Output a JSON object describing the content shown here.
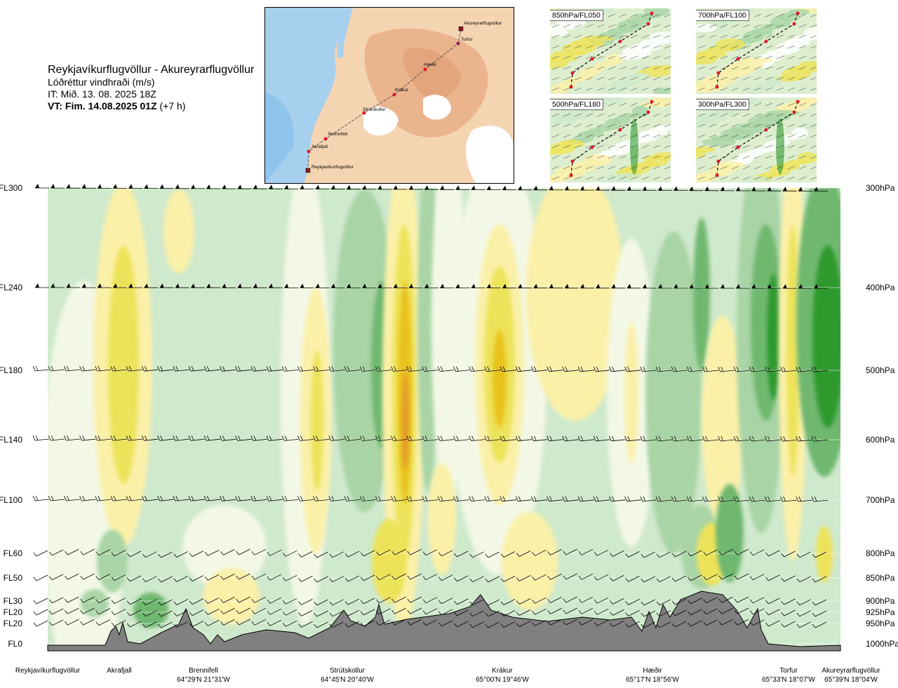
{
  "title": {
    "route": "Reykjavíkurflugvöllur - Akureyrarflugvöllur",
    "variable": "Lóðréttur vindhraði (m/s)",
    "it": "IT: Mið. 13. 08. 2025 18Z",
    "vt_bold": "VT: Fim. 14.08.2025 01Z",
    "vt_rest": " (+7 h)"
  },
  "map": {
    "waypoints": [
      "Reykjavíkurflugvöllur",
      "Akrafjall",
      "Brennifell",
      "Strútskollur",
      "Krákur",
      "Hæðir",
      "Torfur",
      "Akureyrarflugvöllur"
    ]
  },
  "minimaps": [
    {
      "label": "850hPa/FL050"
    },
    {
      "label": "700hPa/FL100"
    },
    {
      "label": "500hPa/FL180"
    },
    {
      "label": "300hPa/FL300"
    }
  ],
  "chart_data": {
    "type": "heatmap",
    "title": "Lóðréttur vindhraði (m/s)",
    "description": "Vertical cross-section of vertical wind speed along route with wind barbs and terrain",
    "y_levels": [
      {
        "fl": "FL300",
        "hpa": "300hPa"
      },
      {
        "fl": "FL240",
        "hpa": "400hPa"
      },
      {
        "fl": "FL180",
        "hpa": "500hPa"
      },
      {
        "fl": "FL140",
        "hpa": "600hPa"
      },
      {
        "fl": "FL100",
        "hpa": "700hPa"
      },
      {
        "fl": "FL60",
        "hpa": "800hPa"
      },
      {
        "fl": "FL50",
        "hpa": "850hPa"
      },
      {
        "fl": "FL30",
        "hpa": "900hPa"
      },
      {
        "fl": "FL20",
        "hpa": "925hPa"
      },
      {
        "fl": "FL20",
        "hpa": "950hPa"
      },
      {
        "fl": "FL0",
        "hpa": "1000hPa"
      }
    ],
    "x_locations": [
      {
        "name": "Reykjavíkurflugvöllur",
        "coord": ""
      },
      {
        "name": "Akrafjall",
        "coord": ""
      },
      {
        "name": "Brennifell",
        "coord": "64°29'N 21°31'W"
      },
      {
        "name": "Strútskollur",
        "coord": "64°45'N 20°40'W"
      },
      {
        "name": "Krákur",
        "coord": "65°00'N 19°46'W"
      },
      {
        "name": "Hæðir",
        "coord": "65°17'N 18°56'W"
      },
      {
        "name": "Torfur",
        "coord": "65°33'N 18°07'W"
      },
      {
        "name": "Akureyrarflugvöllur",
        "coord": "65°39'N 18°04'W"
      }
    ],
    "colors": {
      "strong_up": "#2e9a2e",
      "mid_up": "#6fb86f",
      "weak_up": "#a9d4a5",
      "very_weak_up": "#cfe9cc",
      "near_zero": "#f3f8e6",
      "weak_down": "#fbf0a8",
      "mid_down": "#ede35a",
      "strong_down": "#e9c21c",
      "very_strong_down": "#e49a2a",
      "terrain": "#808080"
    }
  }
}
